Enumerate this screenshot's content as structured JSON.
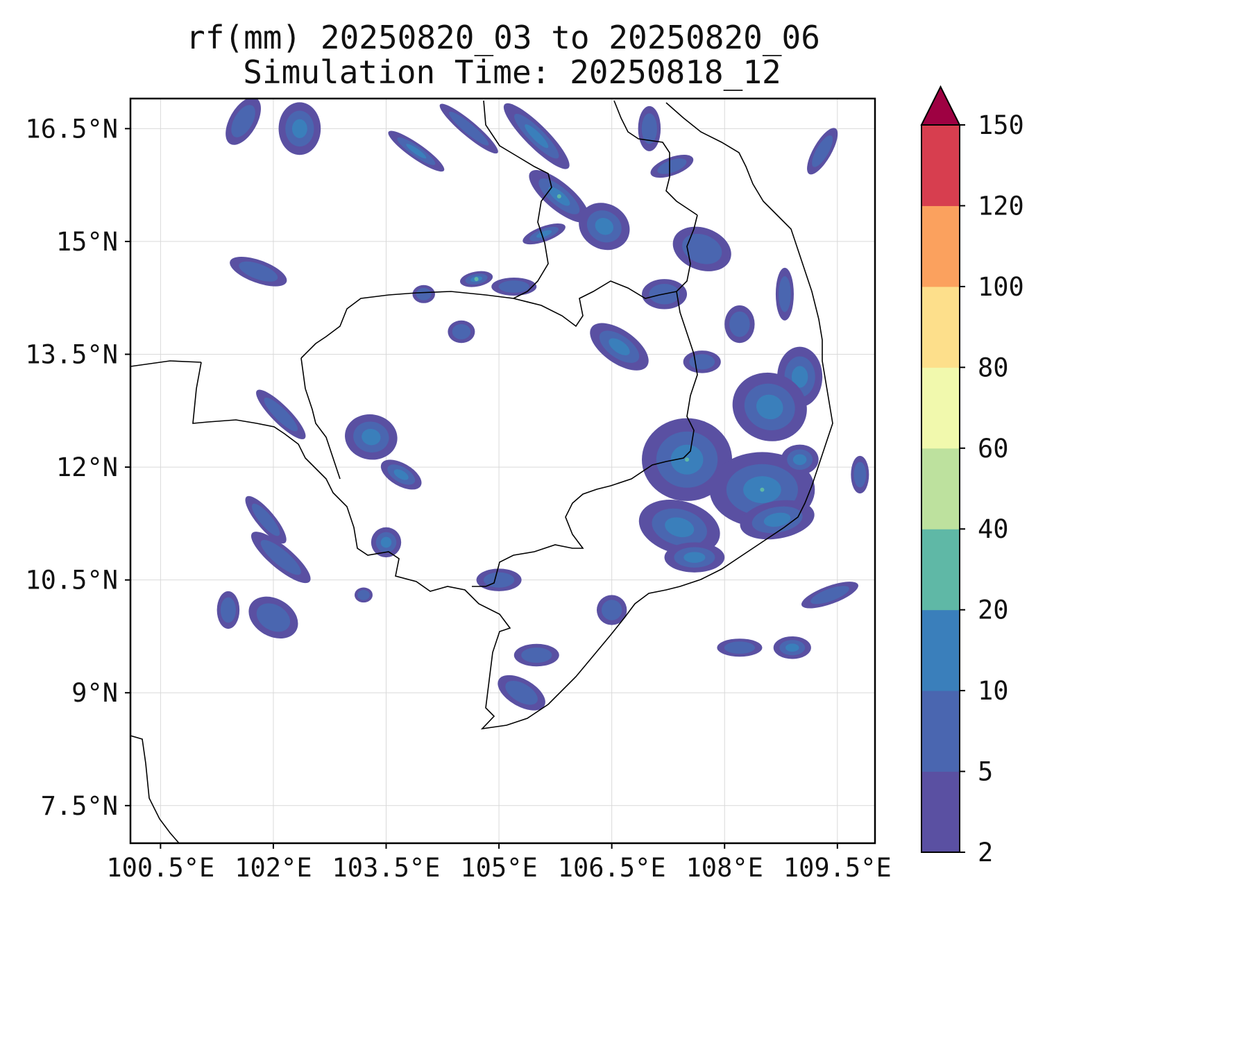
{
  "title": {
    "line1": "rf(mm) 20250820_03 to 20250820_06",
    "line2": "Simulation Time: 20250818_12"
  },
  "map": {
    "lon_range": [
      100.1,
      110.0
    ],
    "lat_range": [
      7.0,
      16.9
    ],
    "lon_ticks": [
      100.5,
      102.0,
      103.5,
      105.0,
      106.5,
      108.0,
      109.5
    ],
    "lat_ticks": [
      7.5,
      9.0,
      10.5,
      12.0,
      13.5,
      15.0,
      16.5
    ],
    "lon_tick_labels": [
      "100.5°E",
      "102°E",
      "103.5°E",
      "105°E",
      "106.5°E",
      "108°E",
      "109.5°E"
    ],
    "lat_tick_labels": [
      "7.5°N",
      "9°N",
      "10.5°N",
      "12°N",
      "13.5°N",
      "15°N",
      "16.5°N"
    ],
    "grid": true
  },
  "colorbar": {
    "variable": "rf(mm)",
    "levels": [
      "2",
      "5",
      "10",
      "20",
      "40",
      "60",
      "80",
      "100",
      "120",
      "150"
    ],
    "colors": [
      "#5a50a2",
      "#4a66b0",
      "#3a7fbb",
      "#5fb8a6",
      "#bde19e",
      "#f1f9ad",
      "#fddf8b",
      "#fba15e",
      "#d73e4f",
      "#9e0142"
    ],
    "extend": "max"
  },
  "rain_patches": [
    {
      "lon": 101.6,
      "lat": 16.6,
      "rx": 0.18,
      "ry": 0.35,
      "rot": 30,
      "level": 1
    },
    {
      "lon": 102.35,
      "lat": 16.5,
      "rx": 0.28,
      "ry": 0.35,
      "rot": 0,
      "level": 2
    },
    {
      "lon": 103.9,
      "lat": 16.2,
      "rx": 0.45,
      "ry": 0.1,
      "rot": 35,
      "level": 2
    },
    {
      "lon": 104.6,
      "lat": 16.5,
      "rx": 0.5,
      "ry": 0.1,
      "rot": 40,
      "level": 1
    },
    {
      "lon": 105.5,
      "lat": 16.4,
      "rx": 0.6,
      "ry": 0.15,
      "rot": 45,
      "level": 2
    },
    {
      "lon": 105.8,
      "lat": 15.6,
      "rx": 0.5,
      "ry": 0.18,
      "rot": 40,
      "level": 3
    },
    {
      "lon": 106.4,
      "lat": 15.2,
      "rx": 0.35,
      "ry": 0.3,
      "rot": 30,
      "level": 2
    },
    {
      "lon": 105.6,
      "lat": 15.1,
      "rx": 0.3,
      "ry": 0.1,
      "rot": -20,
      "level": 2
    },
    {
      "lon": 107.0,
      "lat": 16.5,
      "rx": 0.15,
      "ry": 0.3,
      "rot": 0,
      "level": 1
    },
    {
      "lon": 107.3,
      "lat": 16.0,
      "rx": 0.3,
      "ry": 0.12,
      "rot": -20,
      "level": 1
    },
    {
      "lon": 109.3,
      "lat": 16.2,
      "rx": 0.12,
      "ry": 0.35,
      "rot": 30,
      "level": 1
    },
    {
      "lon": 107.7,
      "lat": 14.9,
      "rx": 0.4,
      "ry": 0.28,
      "rot": 20,
      "level": 1
    },
    {
      "lon": 108.8,
      "lat": 14.3,
      "rx": 0.12,
      "ry": 0.35,
      "rot": 0,
      "level": 1
    },
    {
      "lon": 107.2,
      "lat": 14.3,
      "rx": 0.3,
      "ry": 0.2,
      "rot": 0,
      "level": 1
    },
    {
      "lon": 108.2,
      "lat": 13.9,
      "rx": 0.2,
      "ry": 0.25,
      "rot": 0,
      "level": 1
    },
    {
      "lon": 106.6,
      "lat": 13.6,
      "rx": 0.45,
      "ry": 0.22,
      "rot": 35,
      "level": 2
    },
    {
      "lon": 107.7,
      "lat": 13.4,
      "rx": 0.25,
      "ry": 0.15,
      "rot": 0,
      "level": 1
    },
    {
      "lon": 109.0,
      "lat": 13.2,
      "rx": 0.3,
      "ry": 0.4,
      "rot": 0,
      "level": 2
    },
    {
      "lon": 108.6,
      "lat": 12.8,
      "rx": 0.5,
      "ry": 0.45,
      "rot": 20,
      "level": 2
    },
    {
      "lon": 107.5,
      "lat": 12.1,
      "rx": 0.6,
      "ry": 0.55,
      "rot": 0,
      "level": 3
    },
    {
      "lon": 108.5,
      "lat": 11.7,
      "rx": 0.7,
      "ry": 0.5,
      "rot": 0,
      "level": 3
    },
    {
      "lon": 107.4,
      "lat": 11.2,
      "rx": 0.55,
      "ry": 0.35,
      "rot": 15,
      "level": 2
    },
    {
      "lon": 108.7,
      "lat": 11.3,
      "rx": 0.5,
      "ry": 0.25,
      "rot": -10,
      "level": 2
    },
    {
      "lon": 107.6,
      "lat": 10.8,
      "rx": 0.4,
      "ry": 0.2,
      "rot": 0,
      "level": 2
    },
    {
      "lon": 109.0,
      "lat": 12.1,
      "rx": 0.25,
      "ry": 0.2,
      "rot": 0,
      "level": 2
    },
    {
      "lon": 102.1,
      "lat": 12.7,
      "rx": 0.45,
      "ry": 0.12,
      "rot": 45,
      "level": 1
    },
    {
      "lon": 103.3,
      "lat": 12.4,
      "rx": 0.35,
      "ry": 0.3,
      "rot": 10,
      "level": 2
    },
    {
      "lon": 103.7,
      "lat": 11.9,
      "rx": 0.3,
      "ry": 0.15,
      "rot": 30,
      "level": 2
    },
    {
      "lon": 101.9,
      "lat": 11.3,
      "rx": 0.4,
      "ry": 0.12,
      "rot": 50,
      "level": 1
    },
    {
      "lon": 102.1,
      "lat": 10.8,
      "rx": 0.5,
      "ry": 0.15,
      "rot": 40,
      "level": 1
    },
    {
      "lon": 102.0,
      "lat": 10.0,
      "rx": 0.35,
      "ry": 0.25,
      "rot": 30,
      "level": 1
    },
    {
      "lon": 101.4,
      "lat": 10.1,
      "rx": 0.15,
      "ry": 0.25,
      "rot": 0,
      "level": 1
    },
    {
      "lon": 103.5,
      "lat": 11.0,
      "rx": 0.2,
      "ry": 0.2,
      "rot": 0,
      "level": 2
    },
    {
      "lon": 101.8,
      "lat": 14.6,
      "rx": 0.4,
      "ry": 0.15,
      "rot": 20,
      "level": 1
    },
    {
      "lon": 104.7,
      "lat": 14.5,
      "rx": 0.22,
      "ry": 0.1,
      "rot": -10,
      "level": 3
    },
    {
      "lon": 105.2,
      "lat": 14.4,
      "rx": 0.3,
      "ry": 0.12,
      "rot": 0,
      "level": 1
    },
    {
      "lon": 104.0,
      "lat": 14.3,
      "rx": 0.15,
      "ry": 0.12,
      "rot": 0,
      "level": 1
    },
    {
      "lon": 104.5,
      "lat": 13.8,
      "rx": 0.18,
      "ry": 0.15,
      "rot": 0,
      "level": 1
    },
    {
      "lon": 105.0,
      "lat": 10.5,
      "rx": 0.3,
      "ry": 0.15,
      "rot": 0,
      "level": 1
    },
    {
      "lon": 105.5,
      "lat": 9.5,
      "rx": 0.3,
      "ry": 0.15,
      "rot": 0,
      "level": 1
    },
    {
      "lon": 105.3,
      "lat": 9.0,
      "rx": 0.35,
      "ry": 0.18,
      "rot": 30,
      "level": 1
    },
    {
      "lon": 106.5,
      "lat": 10.1,
      "rx": 0.2,
      "ry": 0.2,
      "rot": 0,
      "level": 1
    },
    {
      "lon": 108.2,
      "lat": 9.6,
      "rx": 0.3,
      "ry": 0.12,
      "rot": 0,
      "level": 1
    },
    {
      "lon": 108.9,
      "lat": 9.6,
      "rx": 0.25,
      "ry": 0.15,
      "rot": 0,
      "level": 2
    },
    {
      "lon": 109.4,
      "lat": 10.3,
      "rx": 0.4,
      "ry": 0.12,
      "rot": -20,
      "level": 1
    },
    {
      "lon": 109.8,
      "lat": 11.9,
      "rx": 0.12,
      "ry": 0.25,
      "rot": 0,
      "level": 1
    },
    {
      "lon": 103.2,
      "lat": 10.3,
      "rx": 0.12,
      "ry": 0.1,
      "rot": 0,
      "level": 1
    }
  ],
  "coastline_paths": [
    "M188,528 L245,520 L290,522",
    "M290,522 L283,560 L278,610 L300,608 L340,605 L370,610 L395,615 L410,625 L430,640 L440,660 L450,670",
    "M450,670 L470,690 L480,710 L500,730 L510,760 L515,790 L530,800 L560,795 L575,805 L570,830 L600,838 L620,852 L645,845 L670,850 L690,870 L720,885 L735,905 L720,910 L710,940 L705,980 L700,1020 L712,1032 L695,1050 L730,1045 L760,1035 L790,1015 L830,975 L855,945 L880,915 L900,890 L915,870 L935,855 L960,850 L980,845 L1010,835 L1040,820 L1070,800 L1100,780 L1130,760 L1150,745 L1160,725 L1170,700 L1180,670 L1190,640 L1200,610 L1195,580 L1190,550 L1185,520 L1185,490 L1180,460 L1170,420 L1160,390 L1150,360 L1140,330 L1120,310 L1100,290 L1085,265 L1075,240 L1065,220 L1040,205 L1010,190 L985,170 L960,148",
    "M188,1060 L205,1065 L210,1100 L215,1150 L230,1180 L245,1200 L258,1215"
  ],
  "border_paths": [
    "M434,516 L455,495 L470,485 L490,470 L500,445 L520,430 L560,425 L600,422 L650,420 L700,425 L740,430",
    "M740,430 L760,420 L775,405 L790,380 L785,350 L775,320 L780,290 L795,270 L790,250 L770,240 L745,225 L720,210 L700,180 L697,145",
    "M740,430 L780,440 L810,455 L830,470 L840,455 L835,430 L855,420 L880,405 L905,415 L930,430 L950,425 L975,420 L990,405 L995,380 L990,355 L1000,330 L1005,310",
    "M434,516 L440,560 L450,590 L455,610 L470,630 L480,660 L490,690",
    "M975,420 L980,450 L990,480 L1000,510 L1005,540 L995,570 L990,600 L1000,620 L995,650 L985,660 L960,665 L940,670 L910,690 L880,700 L860,705 L840,712 L825,725 L815,745 L825,770 L840,790 L825,790 L800,785 L770,795 L740,800 L720,810 L712,840 L700,845 L680,845",
    "M885,145 L895,170 L905,190 L920,200 L955,205 L965,220 L965,255 L960,275 L975,290 L990,300 L1005,310"
  ]
}
